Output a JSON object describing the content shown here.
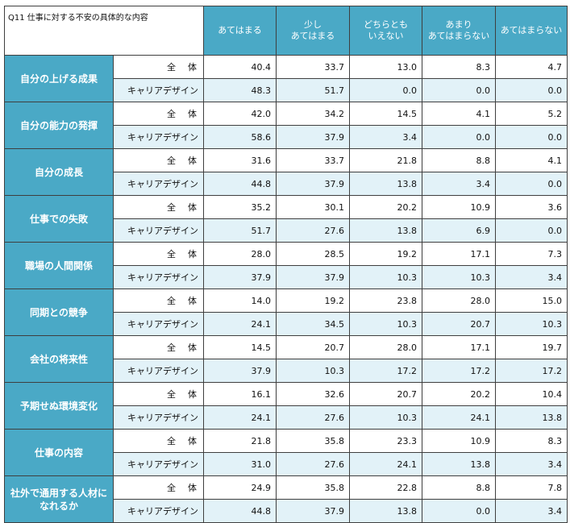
{
  "chart_data": {
    "type": "table",
    "title": "Q11 仕事に対する不安の具体的な内容",
    "columns": [
      "あてはまる",
      "少し\nあてはまる",
      "どちらとも\nいえない",
      "あまり\nあてはまらない",
      "あてはまらない"
    ],
    "groups": [
      "全　体",
      "キャリアデザイン"
    ],
    "rows": [
      {
        "category": "自分の上げる成果",
        "values": [
          [
            40.4,
            33.7,
            13.0,
            8.3,
            4.7
          ],
          [
            48.3,
            51.7,
            0.0,
            0.0,
            0.0
          ]
        ]
      },
      {
        "category": "自分の能力の発揮",
        "values": [
          [
            42.0,
            34.2,
            14.5,
            4.1,
            5.2
          ],
          [
            58.6,
            37.9,
            3.4,
            0.0,
            0.0
          ]
        ]
      },
      {
        "category": "自分の成長",
        "values": [
          [
            31.6,
            33.7,
            21.8,
            8.8,
            4.1
          ],
          [
            44.8,
            37.9,
            13.8,
            3.4,
            0.0
          ]
        ]
      },
      {
        "category": "仕事での失敗",
        "values": [
          [
            35.2,
            30.1,
            20.2,
            10.9,
            3.6
          ],
          [
            51.7,
            27.6,
            13.8,
            6.9,
            0.0
          ]
        ]
      },
      {
        "category": "職場の人間関係",
        "values": [
          [
            28.0,
            28.5,
            19.2,
            17.1,
            7.3
          ],
          [
            37.9,
            37.9,
            10.3,
            10.3,
            3.4
          ]
        ]
      },
      {
        "category": "同期との競争",
        "values": [
          [
            14.0,
            19.2,
            23.8,
            28.0,
            15.0
          ],
          [
            24.1,
            34.5,
            10.3,
            20.7,
            10.3
          ]
        ]
      },
      {
        "category": "会社の将来性",
        "values": [
          [
            14.5,
            20.7,
            28.0,
            17.1,
            19.7
          ],
          [
            37.9,
            10.3,
            17.2,
            17.2,
            17.2
          ]
        ]
      },
      {
        "category": "予期せぬ環境変化",
        "values": [
          [
            16.1,
            32.6,
            20.7,
            20.2,
            10.4
          ],
          [
            24.1,
            27.6,
            10.3,
            24.1,
            13.8
          ]
        ]
      },
      {
        "category": "仕事の内容",
        "values": [
          [
            21.8,
            35.8,
            23.3,
            10.9,
            8.3
          ],
          [
            31.0,
            27.6,
            24.1,
            13.8,
            3.4
          ]
        ]
      },
      {
        "category": "社外で通用する人材になれるか",
        "values": [
          [
            24.9,
            35.8,
            22.8,
            8.8,
            7.8
          ],
          [
            44.8,
            37.9,
            13.8,
            0.0,
            3.4
          ]
        ]
      }
    ]
  },
  "colors": {
    "category_bg": "#4aa9c6",
    "header_bg": "#4aa9c6",
    "sub_row_bg": "#e2f2f8",
    "border": "#3f3f3f"
  }
}
